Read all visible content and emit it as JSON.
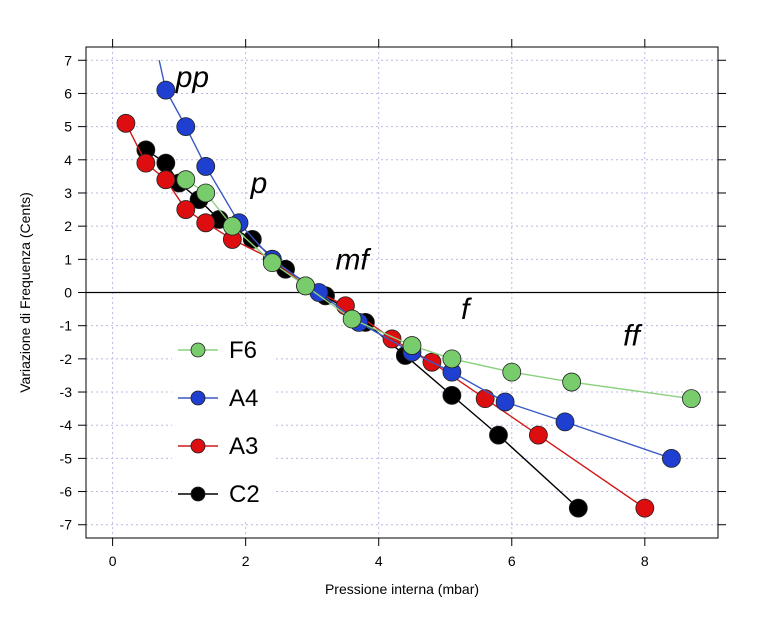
{
  "chart_data": {
    "type": "line",
    "title": "",
    "xlabel": "Pressione interna (mbar)",
    "ylabel": "Variazione di Frequenza (Cents)",
    "xlim": [
      -0.4,
      9.1
    ],
    "ylim": [
      -7.4,
      7.4
    ],
    "x_ticks": [
      0,
      2,
      4,
      6,
      8
    ],
    "y_ticks": [
      -7,
      -6,
      -5,
      -4,
      -3,
      -2,
      -1,
      0,
      1,
      2,
      3,
      4,
      5,
      6,
      7
    ],
    "grid": true,
    "legend_position": "lower-left",
    "series": [
      {
        "name": "F6",
        "color": "#79cc6c",
        "line_color": "#8bd07e",
        "x": [
          1.1,
          1.4,
          1.8,
          2.4,
          2.9,
          3.6,
          4.5,
          5.1,
          6.0,
          6.9,
          8.7
        ],
        "y": [
          3.4,
          3.0,
          2.0,
          0.9,
          0.2,
          -0.8,
          -1.6,
          -2.0,
          -2.4,
          -2.7,
          -3.2
        ]
      },
      {
        "name": "A4",
        "color": "#1f3fd0",
        "line_color": "#3a58c6",
        "x": [
          0.7,
          0.8,
          1.1,
          1.4,
          1.9,
          2.4,
          3.1,
          3.7,
          4.5,
          5.1,
          5.9,
          6.8,
          8.4
        ],
        "y": [
          7.0,
          6.1,
          5.0,
          3.8,
          2.1,
          1.0,
          0.0,
          -0.9,
          -1.8,
          -2.4,
          -3.3,
          -3.9,
          -5.0
        ]
      },
      {
        "name": "A3",
        "color": "#de0d10",
        "line_color": "#d01818",
        "x": [
          0.2,
          0.5,
          0.8,
          1.1,
          1.4,
          1.8,
          2.4,
          2.9,
          3.5,
          4.2,
          4.8,
          5.6,
          6.4,
          8.0
        ],
        "y": [
          5.1,
          3.9,
          3.4,
          2.5,
          2.1,
          1.6,
          1.0,
          0.2,
          -0.4,
          -1.4,
          -2.1,
          -3.2,
          -4.3,
          -6.5
        ]
      },
      {
        "name": "C2",
        "color": "#000000",
        "line_color": "#000000",
        "x": [
          0.5,
          0.8,
          1.0,
          1.3,
          1.6,
          2.1,
          2.6,
          3.2,
          3.8,
          4.4,
          5.1,
          5.8,
          7.0
        ],
        "y": [
          4.3,
          3.9,
          3.3,
          2.8,
          2.2,
          1.6,
          0.7,
          -0.1,
          -0.9,
          -1.9,
          -3.1,
          -4.3,
          -6.5
        ]
      }
    ],
    "annotations": [
      {
        "text": "pp",
        "x": 1.2,
        "y": 6.2
      },
      {
        "text": "p",
        "x": 2.2,
        "y": 3.0
      },
      {
        "text": "mf",
        "x": 3.6,
        "y": 0.7
      },
      {
        "text": "f",
        "x": 5.3,
        "y": -0.8
      },
      {
        "text": "ff",
        "x": 7.8,
        "y": -1.6
      }
    ]
  }
}
